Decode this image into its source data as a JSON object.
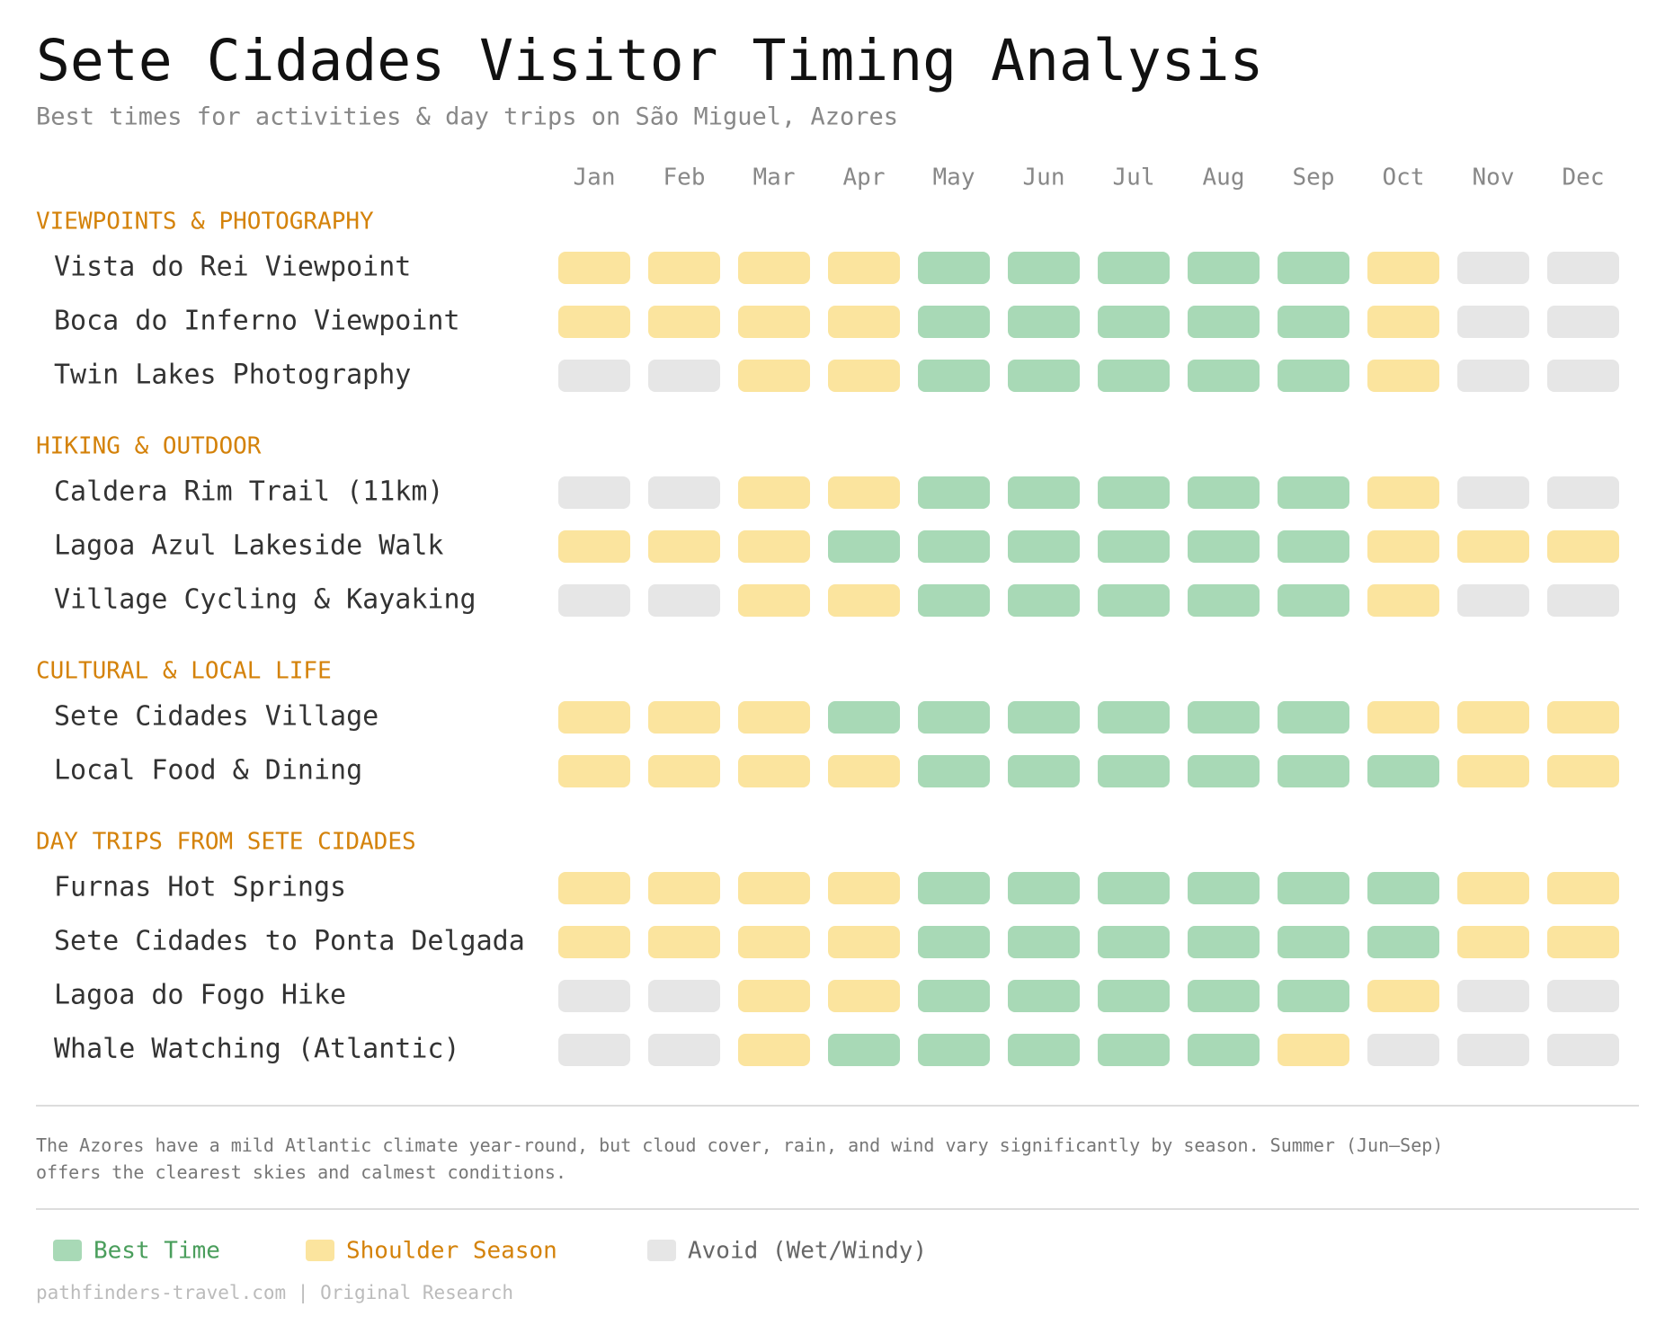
{
  "chart_data": {
    "type": "heatmap",
    "title": "Sete Cidades Visitor Timing Analysis",
    "subtitle": "Best times for activities & day trips on São Miguel, Azores",
    "categories": [
      "Jan",
      "Feb",
      "Mar",
      "Apr",
      "May",
      "Jun",
      "Jul",
      "Aug",
      "Sep",
      "Oct",
      "Nov",
      "Dec"
    ],
    "legend": [
      {
        "name": "Best Time",
        "color": "#a8d9b6",
        "text_color": "#4a9e5c"
      },
      {
        "name": "Shoulder Season",
        "color": "#fbe49e",
        "text_color": "#d4820a"
      },
      {
        "name": "Avoid (Wet/Windy)",
        "color": "#e6e6e6",
        "text_color": "#666666"
      }
    ],
    "groups": [
      {
        "name": "VIEWPOINTS & PHOTOGRAPHY",
        "rows": [
          {
            "name": "Vista do Rei Viewpoint",
            "values": [
              1,
              1,
              1,
              1,
              0,
              0,
              0,
              0,
              0,
              1,
              2,
              2
            ]
          },
          {
            "name": "Boca do Inferno Viewpoint",
            "values": [
              1,
              1,
              1,
              1,
              0,
              0,
              0,
              0,
              0,
              1,
              2,
              2
            ]
          },
          {
            "name": "Twin Lakes Photography",
            "values": [
              2,
              2,
              1,
              1,
              0,
              0,
              0,
              0,
              0,
              1,
              2,
              2
            ]
          }
        ]
      },
      {
        "name": "HIKING & OUTDOOR",
        "rows": [
          {
            "name": "Caldera Rim Trail (11km)",
            "values": [
              2,
              2,
              1,
              1,
              0,
              0,
              0,
              0,
              0,
              1,
              2,
              2
            ]
          },
          {
            "name": "Lagoa Azul Lakeside Walk",
            "values": [
              1,
              1,
              1,
              0,
              0,
              0,
              0,
              0,
              0,
              1,
              1,
              1
            ]
          },
          {
            "name": "Village Cycling & Kayaking",
            "values": [
              2,
              2,
              1,
              1,
              0,
              0,
              0,
              0,
              0,
              1,
              2,
              2
            ]
          }
        ]
      },
      {
        "name": "CULTURAL & LOCAL LIFE",
        "rows": [
          {
            "name": "Sete Cidades Village",
            "values": [
              1,
              1,
              1,
              0,
              0,
              0,
              0,
              0,
              0,
              1,
              1,
              1
            ]
          },
          {
            "name": "Local Food & Dining",
            "values": [
              1,
              1,
              1,
              1,
              0,
              0,
              0,
              0,
              0,
              0,
              1,
              1
            ]
          }
        ]
      },
      {
        "name": "DAY TRIPS FROM SETE CIDADES",
        "rows": [
          {
            "name": "Furnas Hot Springs",
            "values": [
              1,
              1,
              1,
              1,
              0,
              0,
              0,
              0,
              0,
              0,
              1,
              1
            ]
          },
          {
            "name": "Sete Cidades to Ponta Delgada",
            "values": [
              1,
              1,
              1,
              1,
              0,
              0,
              0,
              0,
              0,
              0,
              1,
              1
            ]
          },
          {
            "name": "Lagoa do Fogo Hike",
            "values": [
              2,
              2,
              1,
              1,
              0,
              0,
              0,
              0,
              0,
              1,
              2,
              2
            ]
          },
          {
            "name": "Whale Watching (Atlantic)",
            "values": [
              2,
              2,
              1,
              0,
              0,
              0,
              0,
              0,
              1,
              2,
              2,
              2
            ]
          }
        ]
      }
    ],
    "note": "The Azores have a mild Atlantic climate year-round, but cloud cover, rain, and wind vary significantly by season. Summer (Jun–Sep) offers the clearest skies and calmest conditions.",
    "source": "pathfinders-travel.com | Original Research"
  }
}
